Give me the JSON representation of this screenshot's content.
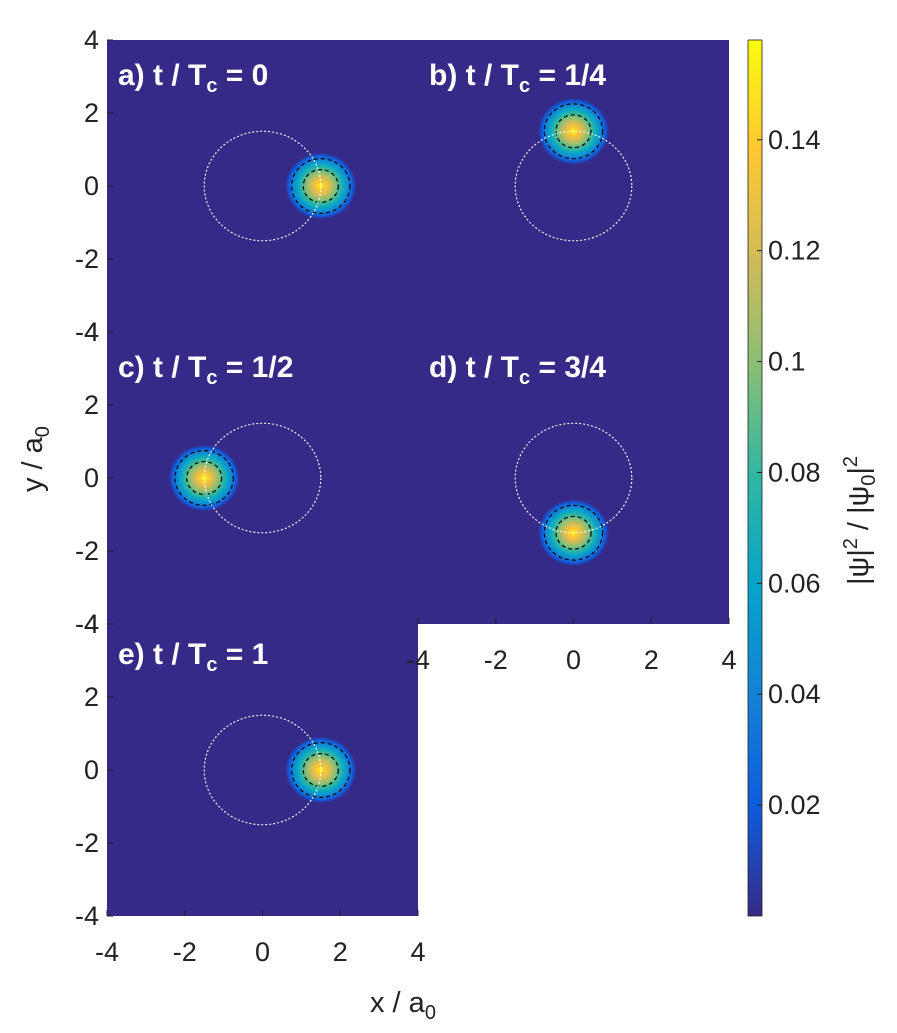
{
  "chart_data": {
    "type": "heatmap",
    "xlabel": "x / a0",
    "ylabel": "y / a0",
    "xlim": [
      -4,
      4
    ],
    "ylim": [
      -4,
      4
    ],
    "x_ticks": [
      "-4",
      "-2",
      "0",
      "2",
      "4"
    ],
    "y_ticks": [
      "-4",
      "-2",
      "0",
      "2",
      "4"
    ],
    "colorbar": {
      "label": "|ψ|² / |ψ0|²",
      "colormap": "parula",
      "range": [
        0,
        0.158
      ],
      "ticks": [
        "0.02",
        "0.04",
        "0.06",
        "0.08",
        "0.1",
        "0.12",
        "0.14"
      ],
      "tick_values": [
        0.02,
        0.04,
        0.06,
        0.08,
        0.1,
        0.12,
        0.14
      ]
    },
    "orbit_radius": 1.5,
    "packet_width": 0.35,
    "panels": [
      {
        "id": "a",
        "prefix": "a)",
        "time": "0",
        "center": [
          1.5,
          0.0
        ]
      },
      {
        "id": "b",
        "prefix": "b)",
        "time": "1/4",
        "center": [
          0.0,
          1.5
        ]
      },
      {
        "id": "c",
        "prefix": "c)",
        "time": "1/2",
        "center": [
          -1.5,
          0.0
        ]
      },
      {
        "id": "d",
        "prefix": "d)",
        "time": "3/4",
        "center": [
          0.0,
          -1.5
        ]
      },
      {
        "id": "e",
        "prefix": "e)",
        "time": "1",
        "center": [
          1.5,
          0.0
        ]
      }
    ]
  },
  "colors": {
    "background": "#352a87",
    "orbit": "#ffffff",
    "contour": "#000000",
    "colormap_stops": [
      "#352a87",
      "#0f5cdd",
      "#1481d6",
      "#06a4ca",
      "#2eb7a4",
      "#87bf77",
      "#d1bb59",
      "#fec832",
      "#f9fb0e"
    ]
  }
}
